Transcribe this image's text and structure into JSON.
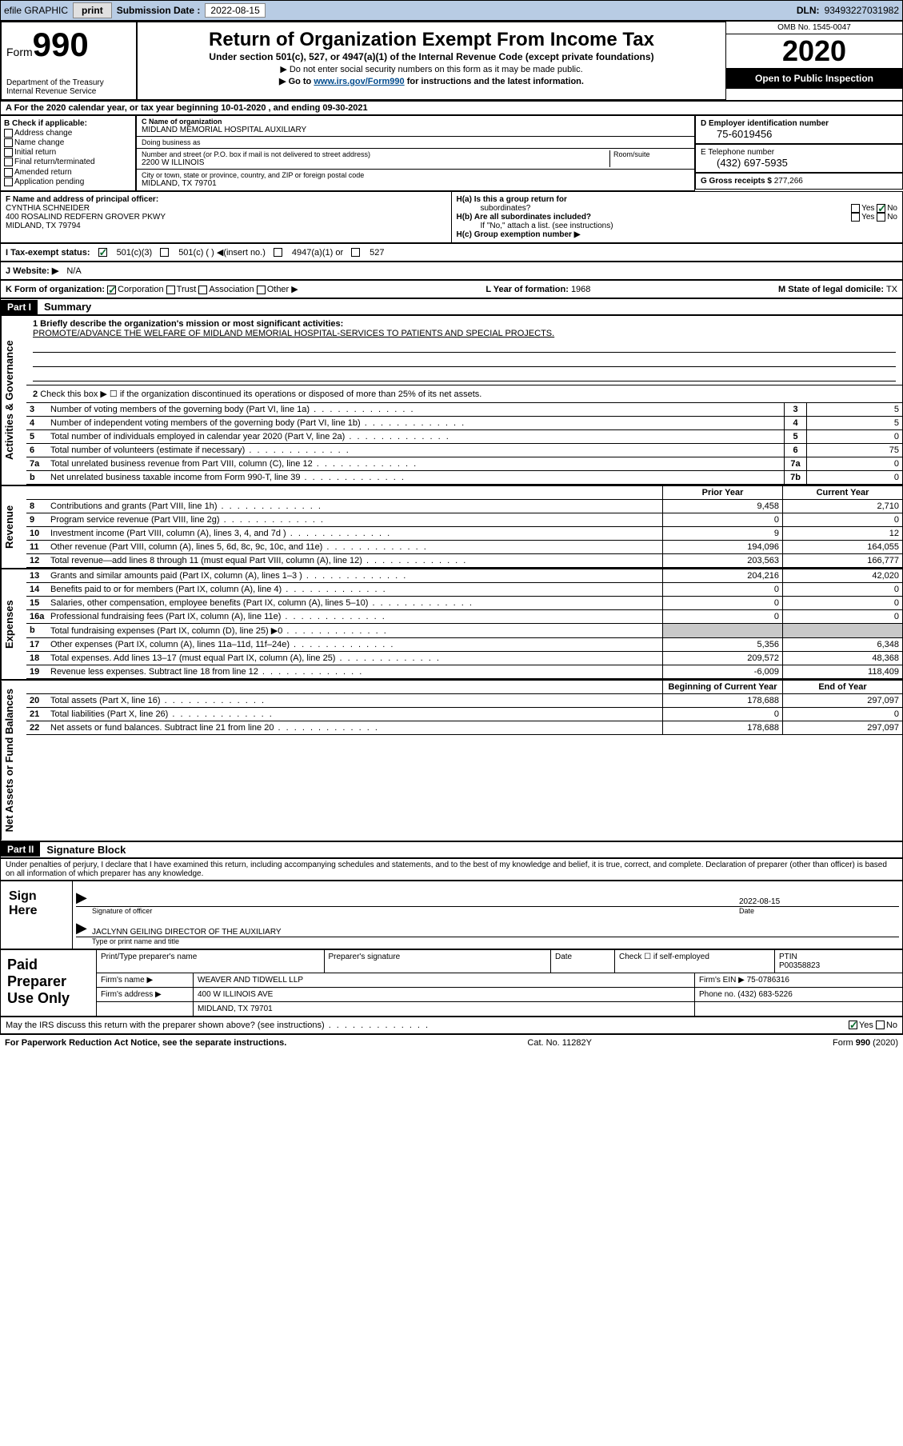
{
  "topbar": {
    "efile_label": "efile GRAPHIC",
    "print_btn": "print",
    "submission_label": "Submission Date :",
    "submission_date": "2022-08-15",
    "dln_label": "DLN:",
    "dln": "93493227031982"
  },
  "header": {
    "form_label": "Form",
    "form_number": "990",
    "dept": "Department of the Treasury",
    "irs": "Internal Revenue Service",
    "title": "Return of Organization Exempt From Income Tax",
    "subtitle": "Under section 501(c), 527, or 4947(a)(1) of the Internal Revenue Code (except private foundations)",
    "note1": "▶ Do not enter social security numbers on this form as it may be made public.",
    "note2_pre": "▶ Go to ",
    "note2_link": "www.irs.gov/Form990",
    "note2_post": " for instructions and the latest information.",
    "omb": "OMB No. 1545-0047",
    "year": "2020",
    "open_public": "Open to Public Inspection"
  },
  "section_a": {
    "text": "A For the 2020 calendar year, or tax year beginning 10-01-2020     , and ending 09-30-2021"
  },
  "box_b": {
    "title": "B Check if applicable:",
    "items": [
      "Address change",
      "Name change",
      "Initial return",
      "Final return/terminated",
      "Amended return",
      "Application pending"
    ]
  },
  "box_c": {
    "name_lbl": "C Name of organization",
    "name": "MIDLAND MEMORIAL HOSPITAL AUXILIARY",
    "dba_lbl": "Doing business as",
    "dba": "",
    "addr_lbl": "Number and street (or P.O. box if mail is not delivered to street address)",
    "room_lbl": "Room/suite",
    "addr": "2200 W ILLINOIS",
    "city_lbl": "City or town, state or province, country, and ZIP or foreign postal code",
    "city": "MIDLAND, TX  79701"
  },
  "box_d": {
    "lbl": "D Employer identification number",
    "val": "75-6019456"
  },
  "box_e": {
    "lbl": "E Telephone number",
    "val": "(432) 697-5935"
  },
  "box_g": {
    "lbl": "G Gross receipts $",
    "val": "277,266"
  },
  "box_f": {
    "lbl": "F  Name and address of principal officer:",
    "name": "CYNTHIA SCHNEIDER",
    "addr1": "400 ROSALIND REDFERN GROVER PKWY",
    "addr2": "MIDLAND, TX  79794"
  },
  "box_h": {
    "ha_lbl": "H(a)  Is this a group return for",
    "ha_sub": "subordinates?",
    "hb_lbl": "H(b)  Are all subordinates included?",
    "hb_note": "If \"No,\" attach a list. (see instructions)",
    "hc_lbl": "H(c)  Group exemption number ▶",
    "yes": "Yes",
    "no": "No"
  },
  "box_i": {
    "lbl": "I    Tax-exempt status:",
    "opt1": "501(c)(3)",
    "opt2": "501(c) (   ) ◀(insert no.)",
    "opt3": "4947(a)(1) or",
    "opt4": "527"
  },
  "box_j": {
    "lbl": "J   Website: ▶",
    "val": "N/A"
  },
  "box_k": {
    "lbl": "K Form of organization:",
    "opts": [
      "Corporation",
      "Trust",
      "Association",
      "Other ▶"
    ],
    "l_lbl": "L Year of formation:",
    "l_val": "1968",
    "m_lbl": "M State of legal domicile:",
    "m_val": "TX"
  },
  "parts": {
    "p1": "Part I",
    "p1_title": "Summary",
    "p2": "Part II",
    "p2_title": "Signature Block"
  },
  "vtabs": {
    "gov": "Activities & Governance",
    "rev": "Revenue",
    "exp": "Expenses",
    "net": "Net Assets or Fund Balances"
  },
  "summary": {
    "q1_lbl": "1   Briefly describe the organization's mission or most significant activities:",
    "q1_val": "PROMOTE/ADVANCE THE WELFARE OF MIDLAND MEMORIAL HOSPITAL-SERVICES TO PATIENTS AND SPECIAL PROJECTS.",
    "q2": "Check this box ▶ ☐  if the organization discontinued its operations or disposed of more than 25% of its net assets.",
    "rows_gov": [
      {
        "n": "3",
        "lbl": "Number of voting members of the governing body (Part VI, line 1a)",
        "box": "3",
        "val": "5"
      },
      {
        "n": "4",
        "lbl": "Number of independent voting members of the governing body (Part VI, line 1b)",
        "box": "4",
        "val": "5"
      },
      {
        "n": "5",
        "lbl": "Total number of individuals employed in calendar year 2020 (Part V, line 2a)",
        "box": "5",
        "val": "0"
      },
      {
        "n": "6",
        "lbl": "Total number of volunteers (estimate if necessary)",
        "box": "6",
        "val": "75"
      },
      {
        "n": "7a",
        "lbl": "Total unrelated business revenue from Part VIII, column (C), line 12",
        "box": "7a",
        "val": "0"
      },
      {
        "n": "b",
        "lbl": "Net unrelated business taxable income from Form 990-T, line 39",
        "box": "7b",
        "val": "0"
      }
    ],
    "hdr_prior": "Prior Year",
    "hdr_current": "Current Year",
    "rows_rev": [
      {
        "n": "8",
        "lbl": "Contributions and grants (Part VIII, line 1h)",
        "c1": "9,458",
        "c2": "2,710"
      },
      {
        "n": "9",
        "lbl": "Program service revenue (Part VIII, line 2g)",
        "c1": "0",
        "c2": "0"
      },
      {
        "n": "10",
        "lbl": "Investment income (Part VIII, column (A), lines 3, 4, and 7d )",
        "c1": "9",
        "c2": "12"
      },
      {
        "n": "11",
        "lbl": "Other revenue (Part VIII, column (A), lines 5, 6d, 8c, 9c, 10c, and 11e)",
        "c1": "194,096",
        "c2": "164,055"
      },
      {
        "n": "12",
        "lbl": "Total revenue—add lines 8 through 11 (must equal Part VIII, column (A), line 12)",
        "c1": "203,563",
        "c2": "166,777"
      }
    ],
    "rows_exp": [
      {
        "n": "13",
        "lbl": "Grants and similar amounts paid (Part IX, column (A), lines 1–3 )",
        "c1": "204,216",
        "c2": "42,020"
      },
      {
        "n": "14",
        "lbl": "Benefits paid to or for members (Part IX, column (A), line 4)",
        "c1": "0",
        "c2": "0"
      },
      {
        "n": "15",
        "lbl": "Salaries, other compensation, employee benefits (Part IX, column (A), lines 5–10)",
        "c1": "0",
        "c2": "0"
      },
      {
        "n": "16a",
        "lbl": "Professional fundraising fees (Part IX, column (A), line 11e)",
        "c1": "0",
        "c2": "0"
      },
      {
        "n": "b",
        "lbl": "Total fundraising expenses (Part IX, column (D), line 25) ▶0",
        "c1": "",
        "c2": "",
        "shade": true
      },
      {
        "n": "17",
        "lbl": "Other expenses (Part IX, column (A), lines 11a–11d, 11f–24e)",
        "c1": "5,356",
        "c2": "6,348"
      },
      {
        "n": "18",
        "lbl": "Total expenses. Add lines 13–17 (must equal Part IX, column (A), line 25)",
        "c1": "209,572",
        "c2": "48,368"
      },
      {
        "n": "19",
        "lbl": "Revenue less expenses. Subtract line 18 from line 12",
        "c1": "-6,009",
        "c2": "118,409"
      }
    ],
    "hdr_na_begin": "Beginning of Current Year",
    "hdr_na_end": "End of Year",
    "rows_na": [
      {
        "n": "20",
        "lbl": "Total assets (Part X, line 16)",
        "c1": "178,688",
        "c2": "297,097"
      },
      {
        "n": "21",
        "lbl": "Total liabilities (Part X, line 26)",
        "c1": "0",
        "c2": "0"
      },
      {
        "n": "22",
        "lbl": "Net assets or fund balances. Subtract line 21 from line 20",
        "c1": "178,688",
        "c2": "297,097"
      }
    ]
  },
  "sig": {
    "penalty": "Under penalties of perjury, I declare that I have examined this return, including accompanying schedules and statements, and to the best of my knowledge and belief, it is true, correct, and complete. Declaration of preparer (other than officer) is based on all information of which preparer has any knowledge.",
    "sign_here": "Sign Here",
    "sig_officer": "Signature of officer",
    "date_lbl": "Date",
    "date_val": "2022-08-15",
    "name_title": "JACLYNN GEILING  DIRECTOR OF THE AUXILIARY",
    "name_title_lbl": "Type or print name and title"
  },
  "paid": {
    "title": "Paid Preparer Use Only",
    "col1": "Print/Type preparer's name",
    "col2": "Preparer's signature",
    "col3": "Date",
    "col4_pre": "Check ☐ if self-employed",
    "col5_lbl": "PTIN",
    "col5_val": "P00358823",
    "firm_name_lbl": "Firm's name      ▶",
    "firm_name": "WEAVER AND TIDWELL LLP",
    "firm_ein_lbl": "Firm's EIN ▶",
    "firm_ein": "75-0786316",
    "firm_addr_lbl": "Firm's address ▶",
    "firm_addr1": "400 W ILLINOIS AVE",
    "firm_addr2": "MIDLAND, TX  79701",
    "phone_lbl": "Phone no.",
    "phone": "(432) 683-5226"
  },
  "footer": {
    "discuss": "May the IRS discuss this return with the preparer shown above? (see instructions)",
    "yes": "Yes",
    "no": "No",
    "pra": "For Paperwork Reduction Act Notice, see the separate instructions.",
    "cat": "Cat. No. 11282Y",
    "form": "Form 990 (2020)"
  },
  "colors": {
    "topbar_bg": "#b8cce4",
    "black": "#000000",
    "link": "#004b8d",
    "check_green": "#0a6b2e"
  }
}
